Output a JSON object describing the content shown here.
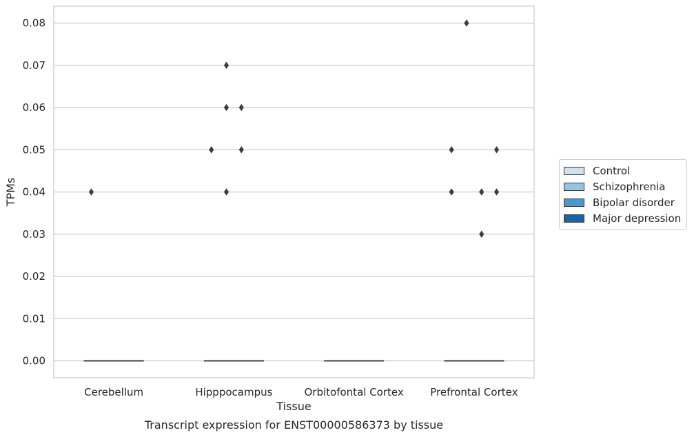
{
  "chart_data": {
    "type": "box",
    "categories": [
      "Cerebellum",
      "Hipppocampus",
      "Orbitofontal Cortex",
      "Prefrontal Cortex"
    ],
    "xlabel": "Tissue",
    "ylabel": "TPMs",
    "caption": "Transcript expression for ENST00000586373 by tissue",
    "ylim": [
      -0.004,
      0.084
    ],
    "yticks": [
      0.0,
      0.01,
      0.02,
      0.03,
      0.04,
      0.05,
      0.06,
      0.07,
      0.08
    ],
    "ytick_labels": [
      "0.00",
      "0.01",
      "0.02",
      "0.03",
      "0.04",
      "0.05",
      "0.06",
      "0.07",
      "0.08"
    ],
    "grid": true,
    "legend_position": "right",
    "series": [
      {
        "name": "Control",
        "color": "#d0e1f2"
      },
      {
        "name": "Schizophrenia",
        "color": "#94c4df"
      },
      {
        "name": "Bipolar disorder",
        "color": "#4a98c9"
      },
      {
        "name": "Major depression",
        "color": "#1764ab"
      }
    ],
    "boxes": [
      {
        "category": 0,
        "median": 0.0
      },
      {
        "category": 1,
        "median": 0.0
      },
      {
        "category": 2,
        "median": 0.0
      },
      {
        "category": 3,
        "median": 0.0
      }
    ],
    "outliers": [
      {
        "category": 0,
        "series": 0,
        "value": 0.04
      },
      {
        "category": 1,
        "series": 0,
        "value": 0.05
      },
      {
        "category": 1,
        "series": 1,
        "value": 0.07
      },
      {
        "category": 1,
        "series": 1,
        "value": 0.06
      },
      {
        "category": 1,
        "series": 1,
        "value": 0.04
      },
      {
        "category": 1,
        "series": 2,
        "value": 0.06
      },
      {
        "category": 1,
        "series": 2,
        "value": 0.05
      },
      {
        "category": 3,
        "series": 0,
        "value": 0.05
      },
      {
        "category": 3,
        "series": 0,
        "value": 0.04
      },
      {
        "category": 3,
        "series": 1,
        "value": 0.08
      },
      {
        "category": 3,
        "series": 2,
        "value": 0.04
      },
      {
        "category": 3,
        "series": 2,
        "value": 0.03
      },
      {
        "category": 3,
        "series": 3,
        "value": 0.05
      },
      {
        "category": 3,
        "series": 3,
        "value": 0.04
      }
    ]
  }
}
